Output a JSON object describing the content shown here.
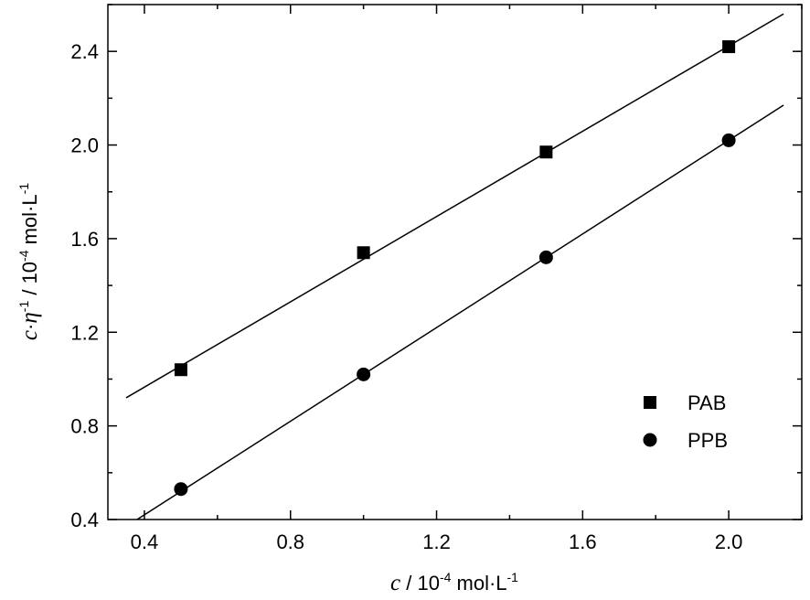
{
  "chart_data": {
    "type": "scatter",
    "xlabel": {
      "var": "c",
      "text": " / 10",
      "exp": "-4",
      "unit": " mol·L",
      "unit_exp": "-1"
    },
    "ylabel": {
      "var1": "c",
      "dot": "·",
      "var2": "η",
      "exp1": "-1",
      "text": " / 10",
      "exp2": "-4",
      "unit": " mol·L",
      "unit_exp": "-1"
    },
    "xlim": [
      0.3,
      2.2
    ],
    "ylim": [
      0.4,
      2.6
    ],
    "x_ticks": [
      0.4,
      0.8,
      1.2,
      1.6,
      2.0
    ],
    "x_tick_labels": [
      "0.4",
      "0.8",
      "1.2",
      "1.6",
      "2.0"
    ],
    "y_ticks": [
      0.4,
      0.8,
      1.2,
      1.6,
      2.0,
      2.4
    ],
    "y_tick_labels": [
      "0.4",
      "0.8",
      "1.2",
      "1.6",
      "2.0",
      "2.4"
    ],
    "grid": false,
    "legend_position": "lower-right",
    "series": [
      {
        "name": "PAB",
        "marker": "square",
        "x": [
          0.5,
          1.0,
          1.5,
          2.0
        ],
        "y": [
          1.04,
          1.54,
          1.97,
          2.42
        ],
        "fit": {
          "x": [
            0.35,
            2.15
          ],
          "y": [
            0.92,
            2.56
          ]
        }
      },
      {
        "name": "PPB",
        "marker": "circle",
        "x": [
          0.5,
          1.0,
          1.5,
          2.0
        ],
        "y": [
          0.53,
          1.02,
          1.52,
          2.02
        ],
        "fit": {
          "x": [
            0.35,
            2.15
          ],
          "y": [
            0.37,
            2.17
          ]
        }
      }
    ]
  }
}
